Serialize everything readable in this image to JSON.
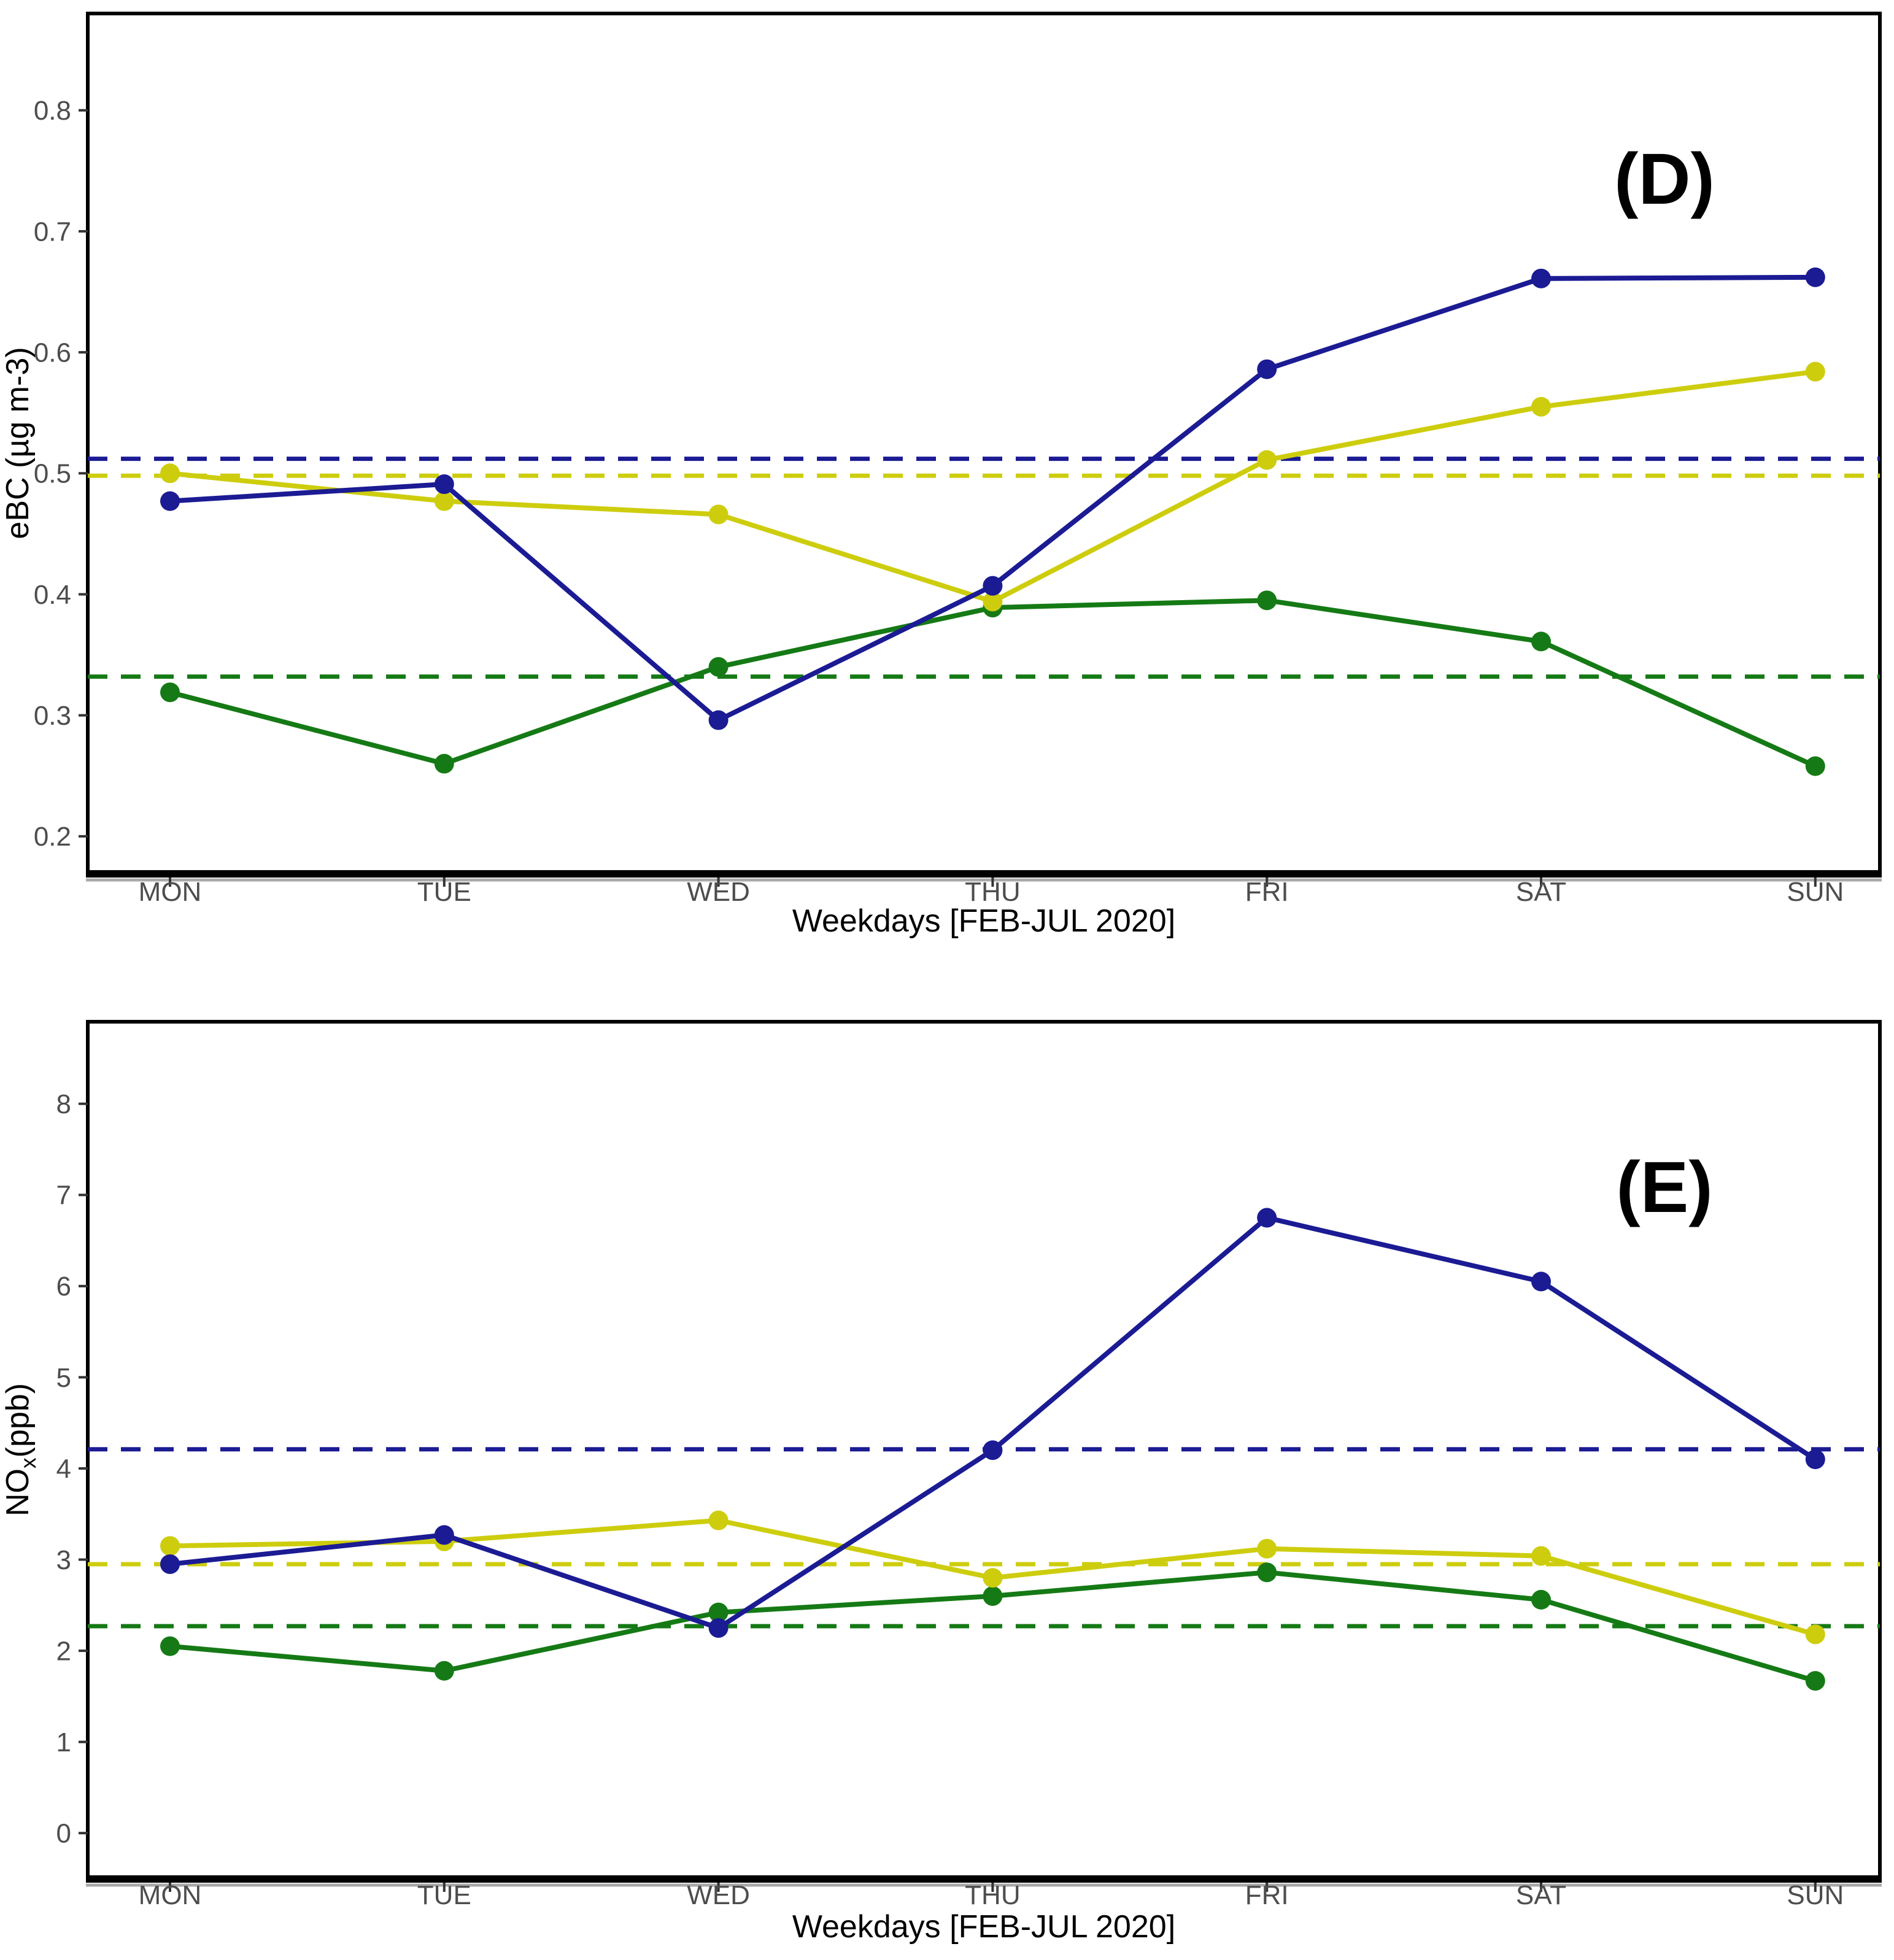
{
  "figure": {
    "background": "#ffffff",
    "tick_label_color": "#4d4d4d",
    "axis_title_color": "#000000",
    "panel_border_color": "#000000"
  },
  "chart_data": [
    {
      "id": "D",
      "type": "line",
      "panel_label": "(D)",
      "xlabel": "Weekdays [FEB-JUL 2020]",
      "ylabel": "eBC (µg m-3)",
      "ylabel_parts": [
        {
          "text": "eBC (µg m-3)",
          "subscript": false
        }
      ],
      "categories": [
        "MON",
        "TUE",
        "WED",
        "THU",
        "FRI",
        "SAT",
        "SUN"
      ],
      "y_tick_labels": [
        "0.2",
        "0.3",
        "0.4",
        "0.5",
        "0.6",
        "0.7",
        "0.8"
      ],
      "y_tick_values": [
        0.2,
        0.3,
        0.4,
        0.5,
        0.6,
        0.7,
        0.8
      ],
      "ylim": [
        0.17,
        0.88
      ],
      "grid": "off",
      "legend": "none",
      "series": [
        {
          "name": "green",
          "color": "#157A15",
          "values": [
            0.319,
            0.26,
            0.34,
            0.389,
            0.395,
            0.361,
            0.258
          ]
        },
        {
          "name": "yellow",
          "color": "#CDCD0E",
          "values": [
            0.5,
            0.477,
            0.466,
            0.394,
            0.511,
            0.555,
            0.584
          ]
        },
        {
          "name": "blue",
          "color": "#1B1B94",
          "values": [
            0.477,
            0.491,
            0.296,
            0.407,
            0.586,
            0.661,
            0.662
          ]
        }
      ],
      "dashed_mean_lines": [
        {
          "name": "blue-mean",
          "color": "#1B1B94",
          "value": 0.512
        },
        {
          "name": "yellow-mean",
          "color": "#CDCD0E",
          "value": 0.498
        },
        {
          "name": "green-mean",
          "color": "#157A15",
          "value": 0.332
        }
      ]
    },
    {
      "id": "E",
      "type": "line",
      "panel_label": "(E)",
      "xlabel": "Weekdays [FEB-JUL 2020]",
      "ylabel": "NOx(ppb)",
      "ylabel_parts": [
        {
          "text": "NO",
          "subscript": false
        },
        {
          "text": "x",
          "subscript": true
        },
        {
          "text": "(ppb)",
          "subscript": false
        }
      ],
      "categories": [
        "MON",
        "TUE",
        "WED",
        "THU",
        "FRI",
        "SAT",
        "SUN"
      ],
      "y_tick_labels": [
        "0",
        "1",
        "2",
        "3",
        "4",
        "5",
        "6",
        "7",
        "8"
      ],
      "y_tick_values": [
        0,
        1,
        2,
        3,
        4,
        5,
        6,
        7,
        8
      ],
      "ylim": [
        -0.49,
        8.9
      ],
      "grid": "off",
      "legend": "none",
      "series": [
        {
          "name": "green",
          "color": "#157A15",
          "values": [
            2.05,
            1.78,
            2.42,
            2.6,
            2.86,
            2.56,
            1.67
          ]
        },
        {
          "name": "yellow",
          "color": "#CDCD0E",
          "values": [
            3.15,
            3.2,
            3.43,
            2.8,
            3.12,
            3.04,
            2.18
          ]
        },
        {
          "name": "blue",
          "color": "#1B1B94",
          "values": [
            2.95,
            3.27,
            2.25,
            4.2,
            6.75,
            6.05,
            4.1
          ]
        }
      ],
      "dashed_mean_lines": [
        {
          "name": "blue-mean",
          "color": "#1B1B94",
          "value": 4.21
        },
        {
          "name": "yellow-mean",
          "color": "#CDCD0E",
          "value": 2.95
        },
        {
          "name": "green-mean",
          "color": "#157A15",
          "value": 2.27
        }
      ]
    }
  ]
}
